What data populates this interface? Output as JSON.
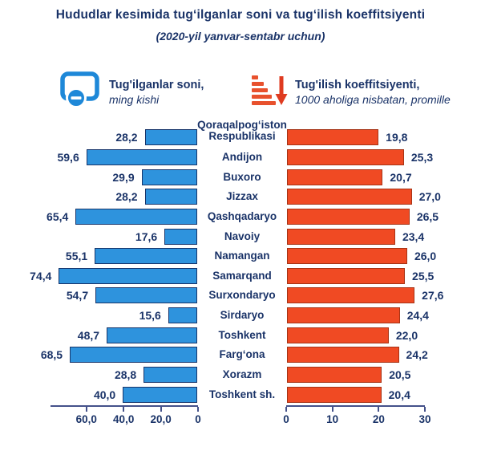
{
  "legend": {
    "births": {
      "title": "Tug'ilganlar soni,",
      "subtitle": "ming kishi",
      "icon": "screen-minus-icon"
    },
    "birth_rate": {
      "title": "Tug'ilish koeffitsiyenti,",
      "subtitle": "1000 aholiga nisbatan, promille",
      "icon": "decreasing-bars-down-arrow-icon"
    }
  },
  "colors": {
    "heading_text": "#1A3368",
    "births_bar": "#2E93DD",
    "births_bar_border": "#17356B",
    "birth_rate_bar": "#F04A23",
    "birth_rate_bar_border": "#A63315",
    "axis_line": "#44518A",
    "legend_blue": "#1E88D8",
    "legend_red": "#E8512D"
  },
  "chart_data": {
    "type": "bar",
    "variant": "tornado",
    "title": "Hududlar kesimida tugʻilganlar soni va tugʻilish koeffitsiyenti",
    "subtitle": "(2020-yil yanvar-sentabr uchun)",
    "grid": false,
    "legend_position": "top",
    "categories": [
      "Qoraqalpogʻiston\nRespublikasi",
      "Andijon",
      "Buxoro",
      "Jizzax",
      "Qashqadaryo",
      "Navoiy",
      "Namangan",
      "Samarqand",
      "Surxondaryo",
      "Sirdaryo",
      "Toshkent",
      "Fargʻona",
      "Xorazm",
      "Toshkent sh."
    ],
    "series": [
      {
        "name": "Tug'ilganlar soni, ming kishi",
        "side": "left",
        "axis_range": [
          0,
          80
        ],
        "axis_reversed": true,
        "values": [
          28.2,
          59.6,
          29.9,
          28.2,
          65.4,
          17.6,
          55.1,
          74.4,
          54.7,
          15.6,
          48.7,
          68.5,
          28.8,
          40.0
        ],
        "value_labels": [
          "28,2",
          "59,6",
          "29,9",
          "28,2",
          "65,4",
          "17,6",
          "55,1",
          "74,4",
          "54,7",
          "15,6",
          "48,7",
          "68,5",
          "28,8",
          "40,0"
        ],
        "axis_ticks": [
          {
            "label": "60,0",
            "value": 60
          },
          {
            "label": "40,0",
            "value": 40
          },
          {
            "label": "20,0",
            "value": 20
          },
          {
            "label": "0",
            "value": 0
          }
        ]
      },
      {
        "name": "Tug'ilish koeffitsiyenti, 1000 aholiga nisbatan, promille",
        "side": "right",
        "axis_range": [
          0,
          30
        ],
        "axis_reversed": false,
        "values": [
          19.8,
          25.3,
          20.7,
          27.0,
          26.5,
          23.4,
          26.0,
          25.5,
          27.6,
          24.4,
          22.0,
          24.2,
          20.5,
          20.4
        ],
        "value_labels": [
          "19,8",
          "25,3",
          "20,7",
          "27,0",
          "26,5",
          "23,4",
          "26,0",
          "25,5",
          "27,6",
          "24,4",
          "22,0",
          "24,2",
          "20,5",
          "20,4"
        ],
        "axis_ticks": [
          {
            "label": "0",
            "value": 0
          },
          {
            "label": "10",
            "value": 10
          },
          {
            "label": "20",
            "value": 20
          },
          {
            "label": "30",
            "value": 30
          }
        ]
      }
    ]
  }
}
